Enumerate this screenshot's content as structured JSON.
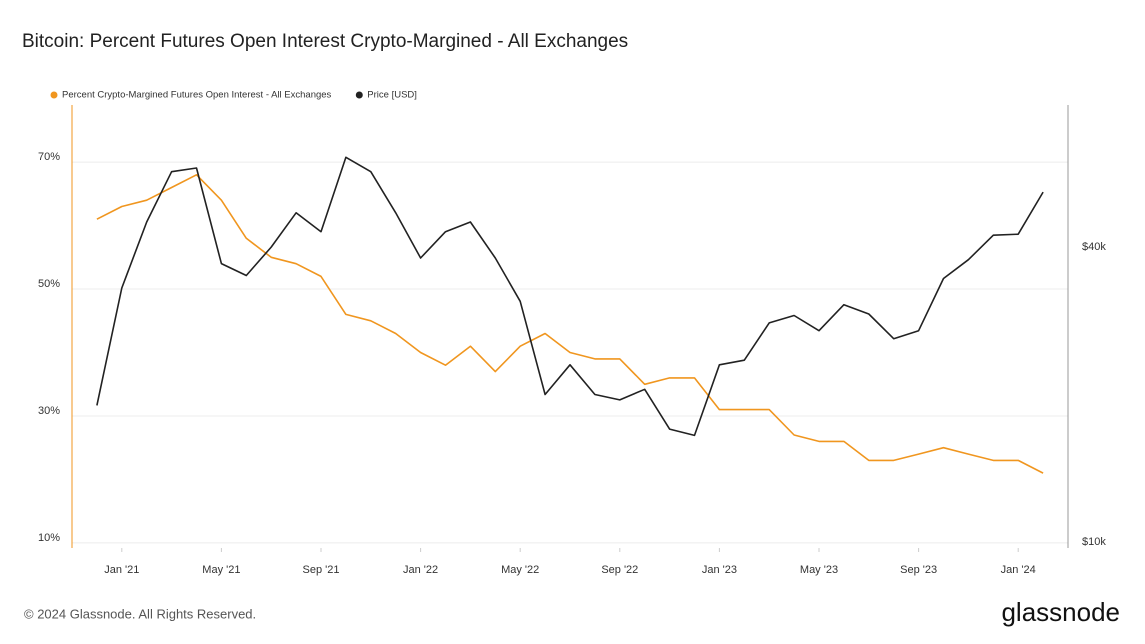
{
  "chart_data": {
    "type": "line",
    "title": "Bitcoin: Percent Futures Open Interest Crypto-Margined - All Exchanges",
    "x": [
      "2020-12",
      "2021-01",
      "2021-02",
      "2021-03",
      "2021-04",
      "2021-05",
      "2021-06",
      "2021-07",
      "2021-08",
      "2021-09",
      "2021-10",
      "2021-11",
      "2021-12",
      "2022-01",
      "2022-02",
      "2022-03",
      "2022-04",
      "2022-05",
      "2022-06",
      "2022-07",
      "2022-08",
      "2022-09",
      "2022-10",
      "2022-11",
      "2022-12",
      "2023-01",
      "2023-02",
      "2023-03",
      "2023-04",
      "2023-05",
      "2023-06",
      "2023-07",
      "2023-08",
      "2023-09",
      "2023-10",
      "2023-11",
      "2023-12",
      "2024-01",
      "2024-02"
    ],
    "xlim": [
      "2020-11",
      "2024-03"
    ],
    "xticks": [
      {
        "value": "2021-01",
        "label": "Jan '21"
      },
      {
        "value": "2021-05",
        "label": "May '21"
      },
      {
        "value": "2021-09",
        "label": "Sep '21"
      },
      {
        "value": "2022-01",
        "label": "Jan '22"
      },
      {
        "value": "2022-05",
        "label": "May '22"
      },
      {
        "value": "2022-09",
        "label": "Sep '22"
      },
      {
        "value": "2023-01",
        "label": "Jan '23"
      },
      {
        "value": "2023-05",
        "label": "May '23"
      },
      {
        "value": "2023-09",
        "label": "Sep '23"
      },
      {
        "value": "2024-01",
        "label": "Jan '24"
      }
    ],
    "ylim": [
      9.2,
      79
    ],
    "yticks": [
      {
        "value": 10,
        "label": "10%"
      },
      {
        "value": 30,
        "label": "30%"
      },
      {
        "value": 50,
        "label": "50%"
      },
      {
        "value": 70,
        "label": "70%"
      }
    ],
    "y2lim": [
      9720,
      78000
    ],
    "y2scale": "log",
    "y2ticks": [
      {
        "value": 10000,
        "label": "$10k"
      },
      {
        "value": 40000,
        "label": "$40k"
      }
    ],
    "grid": true,
    "legend": "top-left",
    "series": [
      {
        "name": "Percent Crypto-Margined Futures Open Interest - All Exchanges",
        "color": "#f0961f",
        "values": [
          61,
          63,
          64,
          66,
          68,
          64,
          58,
          55,
          54,
          52,
          46,
          45,
          43,
          40,
          38,
          41,
          37,
          41,
          43,
          40,
          39,
          39,
          35,
          36,
          36,
          31,
          31,
          31,
          27,
          26,
          26,
          23,
          23,
          24,
          25,
          24,
          23,
          23,
          21
        ]
      },
      {
        "name": "Price [USD]",
        "color": "#222222",
        "axis": "y2",
        "values": [
          19000,
          33000,
          45000,
          57000,
          58000,
          37000,
          35000,
          40000,
          47000,
          43000,
          61000,
          57000,
          47000,
          38000,
          43000,
          45000,
          38000,
          31000,
          20000,
          23000,
          20000,
          19500,
          20500,
          17000,
          16500,
          23000,
          23500,
          28000,
          29000,
          27000,
          30500,
          29200,
          26000,
          27000,
          34500,
          37700,
          42300,
          42500,
          51800
        ]
      }
    ],
    "source": "© 2024 Glassnode. All Rights Reserved.",
    "logo": "glassnode"
  }
}
